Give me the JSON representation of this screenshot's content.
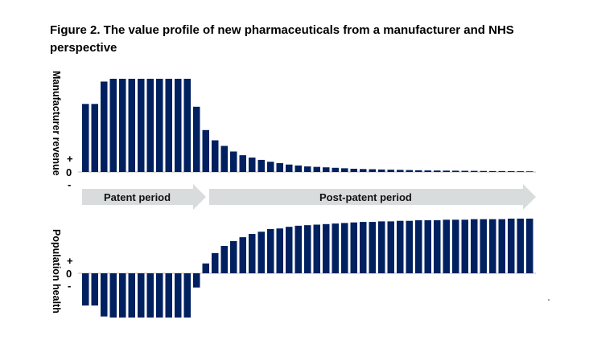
{
  "title": "Figure 2. The value profile of new pharmaceuticals from a manufacturer and NHS perspective",
  "colors": {
    "bar": "#002060",
    "arrow": "#d9dcdc",
    "axis": "#bfbfbf"
  },
  "chart_data": [
    {
      "type": "bar",
      "ylabel": "Manufacturer revenue",
      "yticks": [
        "+",
        "0",
        "-"
      ],
      "ylim": [
        0,
        100
      ],
      "values": [
        73,
        73,
        97,
        100,
        100,
        100,
        100,
        100,
        100,
        100,
        100,
        100,
        70,
        45,
        34,
        28,
        22,
        18,
        15.5,
        13,
        11,
        9.5,
        8,
        7,
        6,
        5.5,
        5,
        4.5,
        4,
        3.5,
        3.2,
        3,
        2.7,
        2.5,
        2.3,
        2.1,
        1.9,
        1.7,
        1.6,
        1.5,
        1.4,
        1.3,
        1.2,
        1.1,
        1,
        1,
        0.9,
        0.8,
        0.7
      ]
    },
    {
      "type": "bar",
      "ylabel": "Population health",
      "yticks": [
        "+",
        "0",
        "-"
      ],
      "ylim": [
        -81,
        100
      ],
      "values": [
        -59,
        -59,
        -79,
        -81,
        -81,
        -81,
        -81,
        -81,
        -81,
        -81,
        -81,
        -81,
        -26,
        18,
        37,
        50,
        59,
        66,
        72,
        76,
        81,
        82,
        85,
        87,
        88,
        89,
        90,
        91,
        92,
        93,
        94,
        94,
        95,
        95,
        96,
        96,
        97,
        97,
        97,
        98,
        98,
        98,
        99,
        99,
        99,
        99,
        100,
        100,
        100
      ]
    }
  ],
  "periods": {
    "patent": "Patent period",
    "post_patent": "Post-patent period"
  }
}
